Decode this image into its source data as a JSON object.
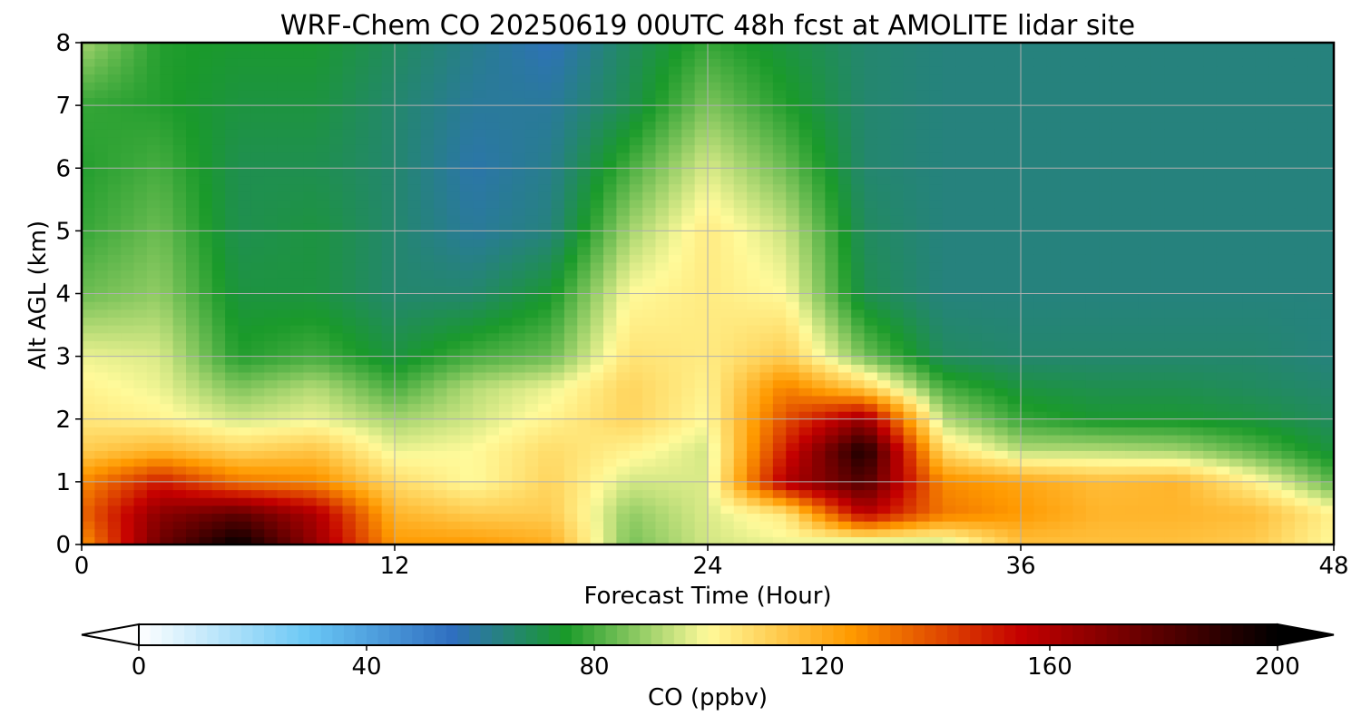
{
  "chart_data": {
    "type": "heatmap",
    "title": "WRF-Chem CO  20250619 00UTC 48h fcst at AMOLITE lidar site",
    "xlabel": "Forecast Time (Hour)",
    "ylabel": "Alt AGL (km)",
    "xlim": [
      0,
      48
    ],
    "ylim": [
      0,
      8
    ],
    "xticks": [
      0,
      12,
      24,
      36,
      48
    ],
    "yticks": [
      0,
      1,
      2,
      3,
      4,
      5,
      6,
      7,
      8
    ],
    "grid": true,
    "x": [
      0,
      3,
      6,
      9,
      12,
      15,
      18,
      21,
      24,
      27,
      30,
      33,
      36,
      39,
      42,
      45,
      48
    ],
    "y": [
      0,
      0.5,
      1,
      1.5,
      2,
      2.5,
      3,
      4,
      5,
      6,
      7,
      8
    ],
    "z": [
      [
        125,
        175,
        200,
        165,
        125,
        125,
        120,
        85,
        95,
        98,
        90,
        92,
        115,
        115,
        115,
        112,
        100
      ],
      [
        135,
        168,
        178,
        160,
        118,
        112,
        112,
        88,
        96,
        105,
        158,
        132,
        125,
        118,
        118,
        116,
        102
      ],
      [
        128,
        150,
        132,
        128,
        108,
        100,
        110,
        95,
        96,
        160,
        182,
        128,
        122,
        116,
        118,
        102,
        82
      ],
      [
        112,
        118,
        110,
        114,
        98,
        100,
        108,
        102,
        95,
        150,
        195,
        108,
        92,
        92,
        90,
        82,
        72
      ],
      [
        105,
        102,
        95,
        98,
        90,
        95,
        102,
        110,
        100,
        140,
        165,
        92,
        78,
        74,
        74,
        72,
        68
      ],
      [
        102,
        98,
        86,
        92,
        80,
        92,
        98,
        110,
        102,
        130,
        112,
        80,
        72,
        70,
        70,
        68,
        66
      ],
      [
        98,
        96,
        76,
        80,
        72,
        80,
        84,
        106,
        104,
        112,
        85,
        68,
        66,
        66,
        66,
        66,
        64
      ],
      [
        84,
        88,
        72,
        72,
        66,
        66,
        74,
        100,
        104,
        100,
        70,
        64,
        64,
        64,
        64,
        64,
        64
      ],
      [
        78,
        84,
        70,
        72,
        66,
        60,
        64,
        90,
        104,
        94,
        68,
        64,
        64,
        64,
        64,
        64,
        64
      ],
      [
        76,
        80,
        70,
        70,
        66,
        58,
        62,
        80,
        96,
        84,
        66,
        64,
        64,
        64,
        64,
        64,
        64
      ],
      [
        78,
        76,
        72,
        72,
        66,
        60,
        60,
        70,
        86,
        76,
        66,
        64,
        64,
        64,
        64,
        64,
        64
      ],
      [
        90,
        76,
        74,
        74,
        68,
        62,
        56,
        68,
        78,
        72,
        66,
        64,
        64,
        64,
        64,
        64,
        64
      ]
    ],
    "colorbar": {
      "label": "CO  (ppbv)",
      "min": 0,
      "max": 200,
      "ticks": [
        0,
        40,
        80,
        120,
        160,
        200
      ],
      "extend": "both",
      "colors": [
        "#ffffff",
        "#69c7f5",
        "#2f6fc0",
        "#1a9a2a",
        "#fffa9a",
        "#ff9a00",
        "#c40000",
        "#000000"
      ],
      "color_stops": [
        0,
        30,
        55,
        75,
        100,
        125,
        155,
        200
      ]
    }
  }
}
